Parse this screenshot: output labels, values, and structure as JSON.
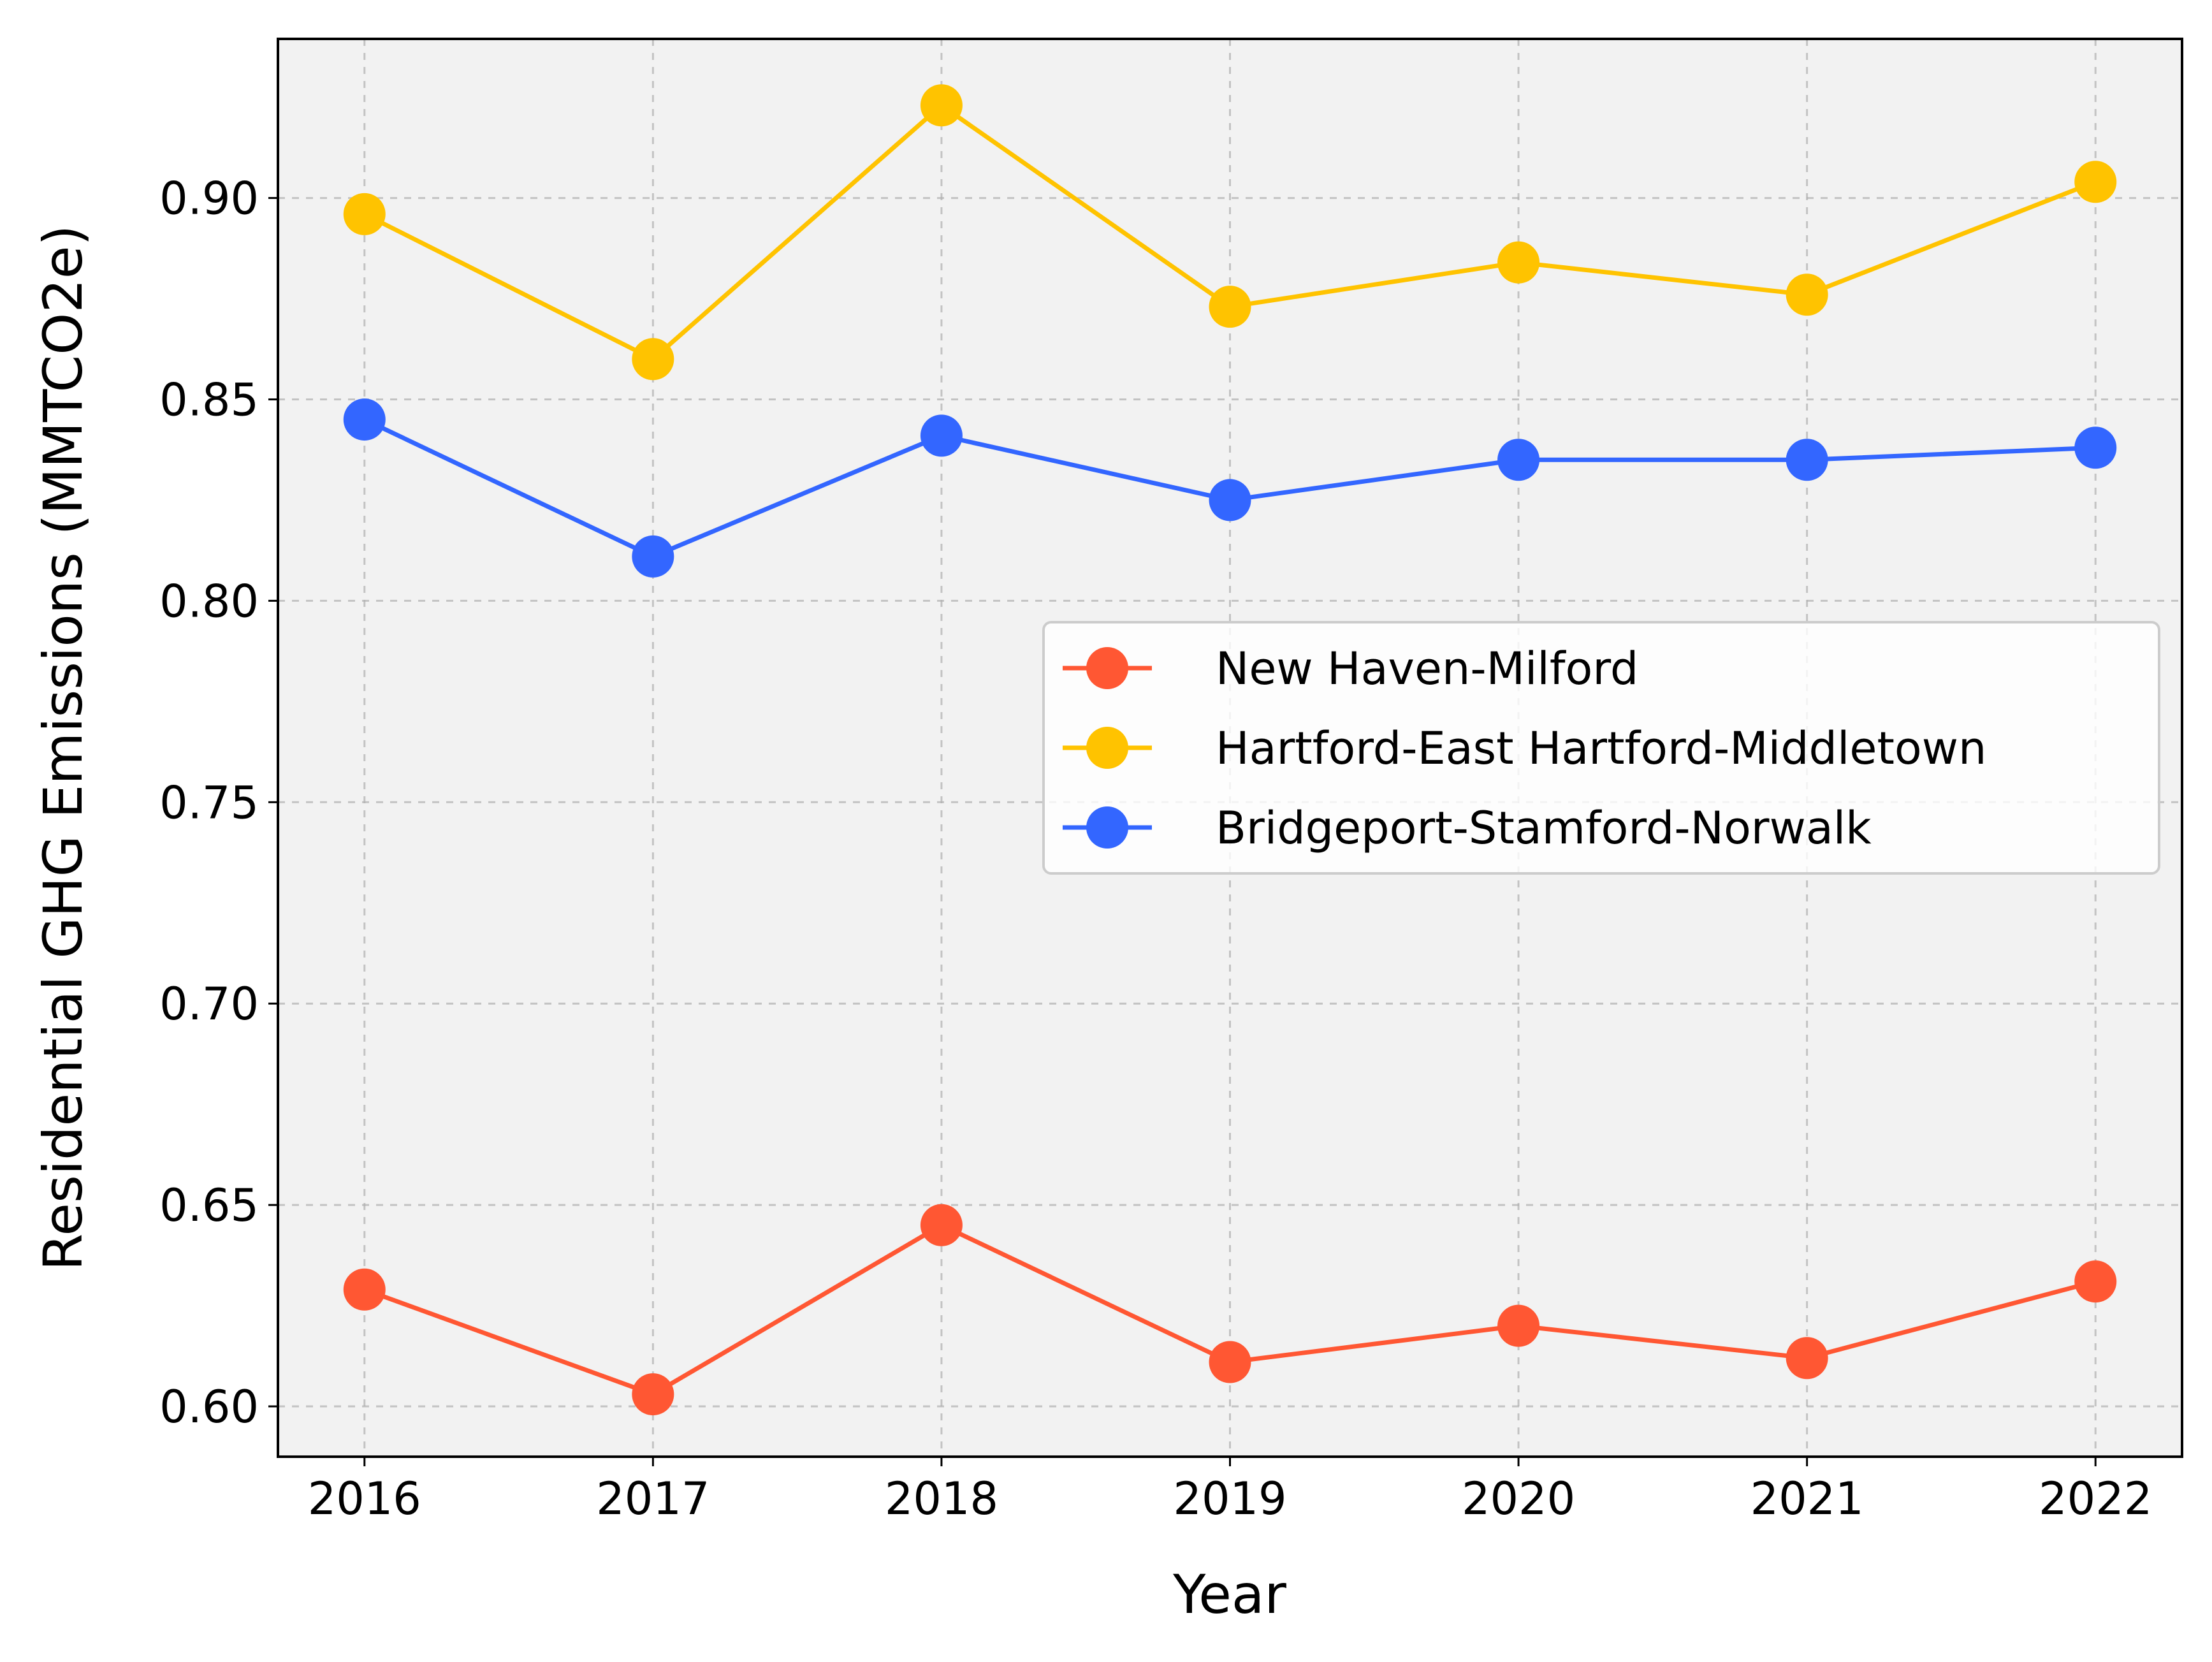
{
  "chart_data": {
    "type": "line",
    "title": "",
    "xlabel": "Year",
    "ylabel": "Residential GHG Emissions (MMTCO2e)",
    "x": [
      2016,
      2017,
      2018,
      2019,
      2020,
      2021,
      2022
    ],
    "xticks": [
      "2016",
      "2017",
      "2018",
      "2019",
      "2020",
      "2021",
      "2022"
    ],
    "yticks": [
      "0.60",
      "0.65",
      "0.70",
      "0.75",
      "0.80",
      "0.85",
      "0.90"
    ],
    "ylim": [
      0.5875,
      0.9395
    ],
    "xlim": [
      2015.7,
      2022.3
    ],
    "grid": true,
    "legend_position": "center-right",
    "background": "#f2f2f2",
    "series": [
      {
        "name": "New Haven-Milford",
        "color": "#ff5733",
        "values": [
          0.629,
          0.603,
          0.645,
          0.611,
          0.62,
          0.612,
          0.631
        ]
      },
      {
        "name": "Hartford-East Hartford-Middletown",
        "color": "#ffc300",
        "values": [
          0.896,
          0.86,
          0.923,
          0.873,
          0.884,
          0.876,
          0.904
        ]
      },
      {
        "name": "Bridgeport-Stamford-Norwalk",
        "color": "#3366ff",
        "values": [
          0.845,
          0.811,
          0.841,
          0.825,
          0.835,
          0.835,
          0.838
        ]
      }
    ]
  }
}
